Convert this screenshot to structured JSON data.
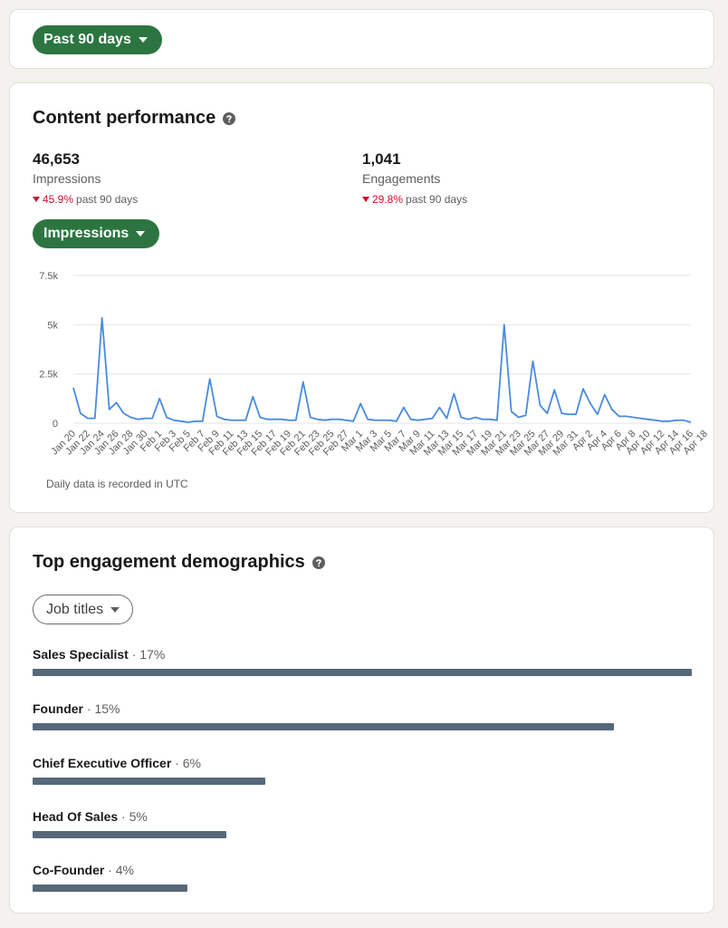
{
  "filter": {
    "range_label": "Past 90 days"
  },
  "content_performance": {
    "title": "Content performance",
    "impressions": {
      "value": "46,653",
      "label": "Impressions",
      "change_pct": "45.9%",
      "change_suffix": "past 90 days"
    },
    "engagements": {
      "value": "1,041",
      "label": "Engagements",
      "change_pct": "29.8%",
      "change_suffix": "past 90 days"
    },
    "metric_selector": "Impressions",
    "note": "Daily data is recorded in UTC"
  },
  "chart_data": {
    "type": "line",
    "ylim": [
      0,
      7500
    ],
    "y_ticks": [
      0,
      2500,
      5000,
      7500
    ],
    "y_tick_labels": [
      "0",
      "2.5k",
      "5k",
      "7.5k"
    ],
    "x_tick_labels": [
      "Jan 20",
      "Jan 22",
      "Jan 24",
      "Jan 26",
      "Jan 28",
      "Jan 30",
      "Feb 1",
      "Feb 3",
      "Feb 5",
      "Feb 7",
      "Feb 9",
      "Feb 11",
      "Feb 13",
      "Feb 15",
      "Feb 17",
      "Feb 19",
      "Feb 21",
      "Feb 23",
      "Feb 25",
      "Feb 27",
      "Mar 1",
      "Mar 3",
      "Mar 5",
      "Mar 7",
      "Mar 9",
      "Mar 11",
      "Mar 13",
      "Mar 15",
      "Mar 17",
      "Mar 19",
      "Mar 21",
      "Mar 23",
      "Mar 25",
      "Mar 27",
      "Mar 29",
      "Mar 31",
      "Apr 2",
      "Apr 4",
      "Apr 6",
      "Apr 8",
      "Apr 10",
      "Apr 12",
      "Apr 14",
      "Apr 16",
      "Apr 18"
    ],
    "grid": true,
    "series": [
      {
        "color": "#4a8bdf",
        "values": [
          1800,
          500,
          250,
          250,
          5350,
          700,
          1050,
          500,
          300,
          200,
          250,
          250,
          1250,
          300,
          150,
          100,
          50,
          100,
          100,
          2250,
          350,
          200,
          150,
          150,
          150,
          1350,
          300,
          200,
          200,
          200,
          150,
          150,
          2100,
          300,
          200,
          150,
          200,
          200,
          150,
          100,
          1000,
          200,
          150,
          150,
          150,
          100,
          800,
          200,
          150,
          200,
          250,
          800,
          250,
          1500,
          300,
          200,
          300,
          200,
          200,
          150,
          5000,
          600,
          300,
          400,
          3150,
          900,
          500,
          1700,
          500,
          450,
          450,
          1750,
          1000,
          450,
          1450,
          700,
          350,
          350,
          300,
          250,
          200,
          150,
          100,
          100,
          150,
          150,
          50
        ]
      }
    ]
  },
  "demographics": {
    "title": "Top engagement demographics",
    "selector": "Job titles",
    "rows": [
      {
        "title": "Sales Specialist",
        "pct_text": "· 17%",
        "value": 17
      },
      {
        "title": "Founder",
        "pct_text": "· 15%",
        "value": 15
      },
      {
        "title": "Chief Executive Officer",
        "pct_text": "· 6%",
        "value": 6
      },
      {
        "title": "Head Of Sales",
        "pct_text": "· 5%",
        "value": 5
      },
      {
        "title": "Co-Founder",
        "pct_text": "· 4%",
        "value": 4
      }
    ]
  },
  "colors": {
    "accent_green": "#2c7541",
    "negative_red": "#cb112d",
    "bar_slate": "#56687a",
    "line_blue": "#4a8bdf"
  },
  "icons": {
    "dropdown": "caret-down-icon",
    "help": "question-circle-icon",
    "trend_down": "triangle-down-icon"
  }
}
